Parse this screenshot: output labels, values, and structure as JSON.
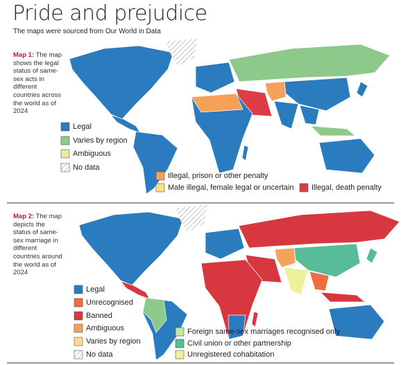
{
  "header": {
    "title": "Pride and prejudice",
    "subtitle": "The maps were sourced from Our World in Data"
  },
  "maps": [
    {
      "label": "Map 1:",
      "description": "The map shows the legal status of same-sex acts in different countries across the world as of 2024",
      "legend": [
        {
          "label": "Legal",
          "color": "#2b7bbf"
        },
        {
          "label": "Varies by region",
          "color": "#8cc98a"
        },
        {
          "label": "Ambiguous",
          "color": "#eeec9c"
        },
        {
          "label": "No data"
        },
        {
          "label": "Illegal, prison or other penalty",
          "color": "#f5a15a"
        },
        {
          "label": "Male illegal, female legal or uncertain",
          "color": "#fddc8f"
        },
        {
          "label": "Illegal, death penalty",
          "color": "#dc3d47"
        }
      ]
    },
    {
      "label": "Map 2:",
      "description": "The map depicts the status of same-sex marriage in different countries around the world as of 2024",
      "legend": [
        {
          "label": "Legal",
          "color": "#2b7bbf"
        },
        {
          "label": "Unrecognised",
          "color": "#f26a3f"
        },
        {
          "label": "Banned",
          "color": "#d7373f"
        },
        {
          "label": "Ambiguous",
          "color": "#f5a15a"
        },
        {
          "label": "Varies by region",
          "color": "#fddc8f"
        },
        {
          "label": "No data"
        },
        {
          "label": "Foreign same-sex marriages recognised only",
          "color": "#c6e6a4"
        },
        {
          "label": "Civil union or other partnership",
          "color": "#57bc98"
        },
        {
          "label": "Unregistered cohabitation",
          "color": "#eef19a"
        }
      ]
    }
  ]
}
